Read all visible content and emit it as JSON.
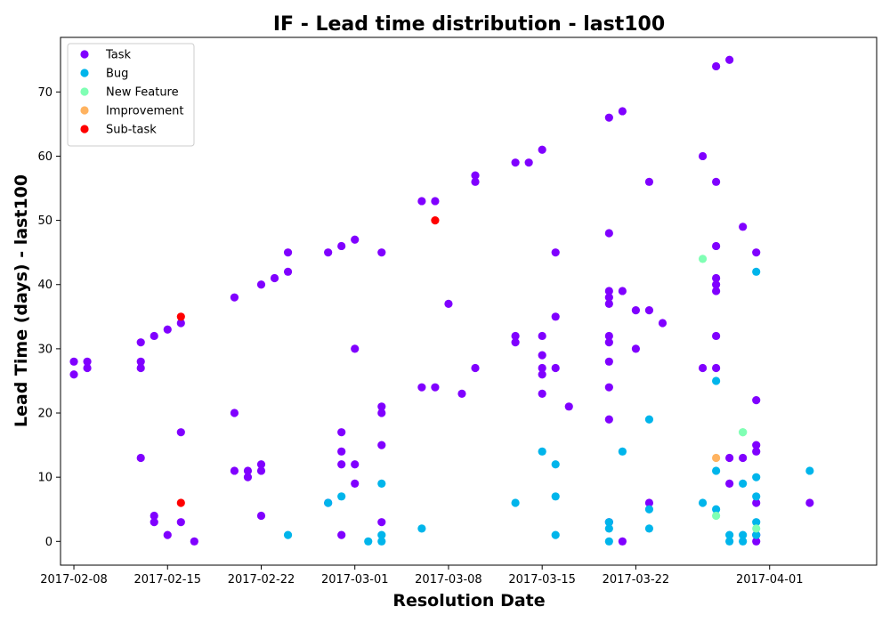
{
  "chart_data": {
    "type": "scatter",
    "title": "IF - Lead time distribution - last100",
    "xlabel": "Resolution Date",
    "ylabel": "Lead Time (days) - last100",
    "x_axis_type": "date",
    "xlim": [
      "2017-02-07",
      "2017-04-09"
    ],
    "ylim": [
      -3.7,
      78.5
    ],
    "x_ticks": [
      "2017-02-08",
      "2017-02-15",
      "2017-02-22",
      "2017-03-01",
      "2017-03-08",
      "2017-03-15",
      "2017-03-22",
      "2017-04-01"
    ],
    "y_ticks": [
      0,
      10,
      20,
      30,
      40,
      50,
      60,
      70
    ],
    "grid": false,
    "legend_position": "top-left",
    "series": [
      {
        "name": "Task",
        "color": "#8000ff",
        "points": [
          [
            "2017-02-08",
            28
          ],
          [
            "2017-02-08",
            26
          ],
          [
            "2017-02-09",
            28
          ],
          [
            "2017-02-09",
            27
          ],
          [
            "2017-02-13",
            31
          ],
          [
            "2017-02-13",
            28
          ],
          [
            "2017-02-13",
            27
          ],
          [
            "2017-02-13",
            13
          ],
          [
            "2017-02-14",
            32
          ],
          [
            "2017-02-14",
            4
          ],
          [
            "2017-02-14",
            3
          ],
          [
            "2017-02-15",
            33
          ],
          [
            "2017-02-15",
            1
          ],
          [
            "2017-02-16",
            34
          ],
          [
            "2017-02-16",
            17
          ],
          [
            "2017-02-16",
            3
          ],
          [
            "2017-02-17",
            0
          ],
          [
            "2017-02-20",
            38
          ],
          [
            "2017-02-20",
            20
          ],
          [
            "2017-02-20",
            11
          ],
          [
            "2017-02-21",
            11
          ],
          [
            "2017-02-21",
            10
          ],
          [
            "2017-02-22",
            40
          ],
          [
            "2017-02-22",
            12
          ],
          [
            "2017-02-22",
            11
          ],
          [
            "2017-02-22",
            4
          ],
          [
            "2017-02-23",
            41
          ],
          [
            "2017-02-24",
            45
          ],
          [
            "2017-02-24",
            42
          ],
          [
            "2017-02-27",
            45
          ],
          [
            "2017-02-27",
            6
          ],
          [
            "2017-02-28",
            46
          ],
          [
            "2017-02-28",
            17
          ],
          [
            "2017-02-28",
            14
          ],
          [
            "2017-02-28",
            12
          ],
          [
            "2017-02-28",
            1
          ],
          [
            "2017-03-01",
            47
          ],
          [
            "2017-03-01",
            30
          ],
          [
            "2017-03-01",
            12
          ],
          [
            "2017-03-01",
            9
          ],
          [
            "2017-03-03",
            45
          ],
          [
            "2017-03-03",
            21
          ],
          [
            "2017-03-03",
            20
          ],
          [
            "2017-03-03",
            15
          ],
          [
            "2017-03-03",
            3
          ],
          [
            "2017-03-06",
            53
          ],
          [
            "2017-03-06",
            24
          ],
          [
            "2017-03-07",
            53
          ],
          [
            "2017-03-07",
            24
          ],
          [
            "2017-03-08",
            37
          ],
          [
            "2017-03-09",
            23
          ],
          [
            "2017-03-10",
            56
          ],
          [
            "2017-03-10",
            57
          ],
          [
            "2017-03-10",
            27
          ],
          [
            "2017-03-13",
            59
          ],
          [
            "2017-03-13",
            31
          ],
          [
            "2017-03-13",
            32
          ],
          [
            "2017-03-14",
            59
          ],
          [
            "2017-03-15",
            61
          ],
          [
            "2017-03-15",
            32
          ],
          [
            "2017-03-15",
            29
          ],
          [
            "2017-03-15",
            27
          ],
          [
            "2017-03-15",
            26
          ],
          [
            "2017-03-15",
            23
          ],
          [
            "2017-03-16",
            45
          ],
          [
            "2017-03-16",
            35
          ],
          [
            "2017-03-16",
            27
          ],
          [
            "2017-03-17",
            21
          ],
          [
            "2017-03-20",
            66
          ],
          [
            "2017-03-20",
            48
          ],
          [
            "2017-03-20",
            39
          ],
          [
            "2017-03-20",
            38
          ],
          [
            "2017-03-20",
            37
          ],
          [
            "2017-03-20",
            32
          ],
          [
            "2017-03-20",
            31
          ],
          [
            "2017-03-20",
            28
          ],
          [
            "2017-03-20",
            24
          ],
          [
            "2017-03-20",
            19
          ],
          [
            "2017-03-20",
            3
          ],
          [
            "2017-03-21",
            67
          ],
          [
            "2017-03-21",
            39
          ],
          [
            "2017-03-21",
            0
          ],
          [
            "2017-03-22",
            36
          ],
          [
            "2017-03-22",
            30
          ],
          [
            "2017-03-23",
            56
          ],
          [
            "2017-03-23",
            36
          ],
          [
            "2017-03-23",
            6
          ],
          [
            "2017-03-24",
            34
          ],
          [
            "2017-03-27",
            60
          ],
          [
            "2017-03-27",
            27
          ],
          [
            "2017-03-28",
            74
          ],
          [
            "2017-03-28",
            56
          ],
          [
            "2017-03-28",
            46
          ],
          [
            "2017-03-28",
            41
          ],
          [
            "2017-03-28",
            40
          ],
          [
            "2017-03-28",
            39
          ],
          [
            "2017-03-28",
            32
          ],
          [
            "2017-03-28",
            27
          ],
          [
            "2017-03-29",
            75
          ],
          [
            "2017-03-29",
            13
          ],
          [
            "2017-03-29",
            9
          ],
          [
            "2017-03-30",
            13
          ],
          [
            "2017-03-30",
            49
          ],
          [
            "2017-03-31",
            45
          ],
          [
            "2017-03-31",
            22
          ],
          [
            "2017-03-31",
            15
          ],
          [
            "2017-03-31",
            14
          ],
          [
            "2017-03-31",
            6
          ],
          [
            "2017-03-31",
            1
          ],
          [
            "2017-03-31",
            0
          ],
          [
            "2017-04-04",
            6
          ]
        ]
      },
      {
        "name": "Bug",
        "color": "#00b5eb",
        "points": [
          [
            "2017-02-24",
            1
          ],
          [
            "2017-02-27",
            6
          ],
          [
            "2017-02-28",
            7
          ],
          [
            "2017-03-02",
            0
          ],
          [
            "2017-03-03",
            0
          ],
          [
            "2017-03-03",
            1
          ],
          [
            "2017-03-03",
            9
          ],
          [
            "2017-03-06",
            2
          ],
          [
            "2017-03-13",
            6
          ],
          [
            "2017-03-15",
            14
          ],
          [
            "2017-03-16",
            12
          ],
          [
            "2017-03-16",
            7
          ],
          [
            "2017-03-16",
            1
          ],
          [
            "2017-03-20",
            3
          ],
          [
            "2017-03-20",
            2
          ],
          [
            "2017-03-20",
            0
          ],
          [
            "2017-03-21",
            14
          ],
          [
            "2017-03-23",
            19
          ],
          [
            "2017-03-23",
            5
          ],
          [
            "2017-03-23",
            2
          ],
          [
            "2017-03-27",
            6
          ],
          [
            "2017-03-28",
            25
          ],
          [
            "2017-03-28",
            11
          ],
          [
            "2017-03-28",
            5
          ],
          [
            "2017-03-29",
            1
          ],
          [
            "2017-03-29",
            0
          ],
          [
            "2017-03-30",
            9
          ],
          [
            "2017-03-30",
            1
          ],
          [
            "2017-03-30",
            0
          ],
          [
            "2017-03-31",
            42
          ],
          [
            "2017-03-31",
            10
          ],
          [
            "2017-03-31",
            7
          ],
          [
            "2017-03-31",
            3
          ],
          [
            "2017-03-31",
            1
          ],
          [
            "2017-04-04",
            11
          ]
        ]
      },
      {
        "name": "New Feature",
        "color": "#80ffb4",
        "points": [
          [
            "2017-03-27",
            44
          ],
          [
            "2017-03-28",
            4
          ],
          [
            "2017-03-30",
            17
          ],
          [
            "2017-03-30",
            17
          ],
          [
            "2017-03-31",
            2
          ]
        ]
      },
      {
        "name": "Improvement",
        "color": "#ffb360",
        "points": [
          [
            "2017-03-28",
            13
          ]
        ]
      },
      {
        "name": "Sub-task",
        "color": "#ff0000",
        "points": [
          [
            "2017-02-16",
            35
          ],
          [
            "2017-02-16",
            6
          ],
          [
            "2017-03-07",
            50
          ]
        ]
      }
    ]
  }
}
